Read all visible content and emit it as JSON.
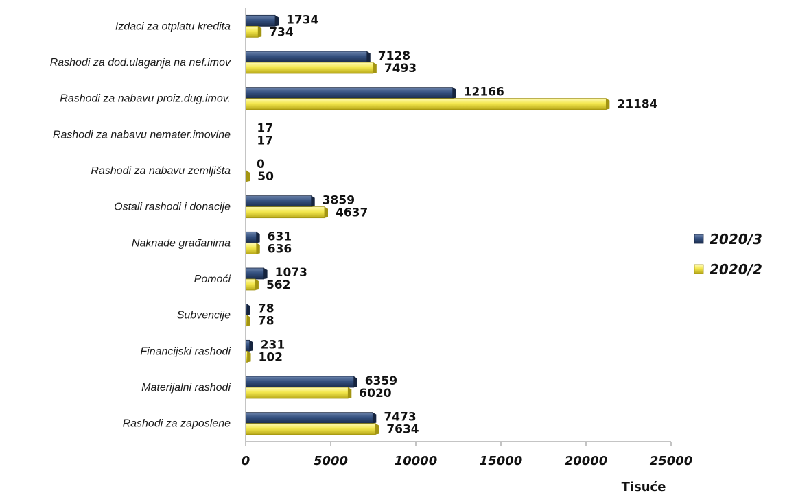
{
  "chart_data": {
    "type": "bar",
    "orientation": "horizontal",
    "categories": [
      "Izdaci za otplatu kredita",
      "Rashodi za dod.ulaganja na nef.imov",
      "Rashodi za nabavu proiz.dug.imov.",
      "Rashodi za nabavu nemater.imovine",
      "Rashodi za nabavu zemljišta",
      "Ostali rashodi i donacije",
      "Naknade građanima",
      "Pomoći",
      "Subvencije",
      "Financijski rashodi",
      "Materijalni rashodi",
      "Rashodi za zaposlene"
    ],
    "series": [
      {
        "name": "2020/3",
        "color": "#2e4a78",
        "values": [
          1734,
          7128,
          12166,
          17,
          0,
          3859,
          631,
          1073,
          78,
          231,
          6359,
          7473
        ]
      },
      {
        "name": "2020/2",
        "color": "#f2e64c",
        "values": [
          734,
          7493,
          21184,
          17,
          50,
          4637,
          636,
          562,
          78,
          102,
          6020,
          7634
        ]
      }
    ],
    "xlabel": "Tisuće",
    "xlim": [
      0,
      25000
    ],
    "xticks": [
      0,
      5000,
      10000,
      15000,
      20000,
      25000
    ],
    "grid": false,
    "legend_position": "right"
  }
}
